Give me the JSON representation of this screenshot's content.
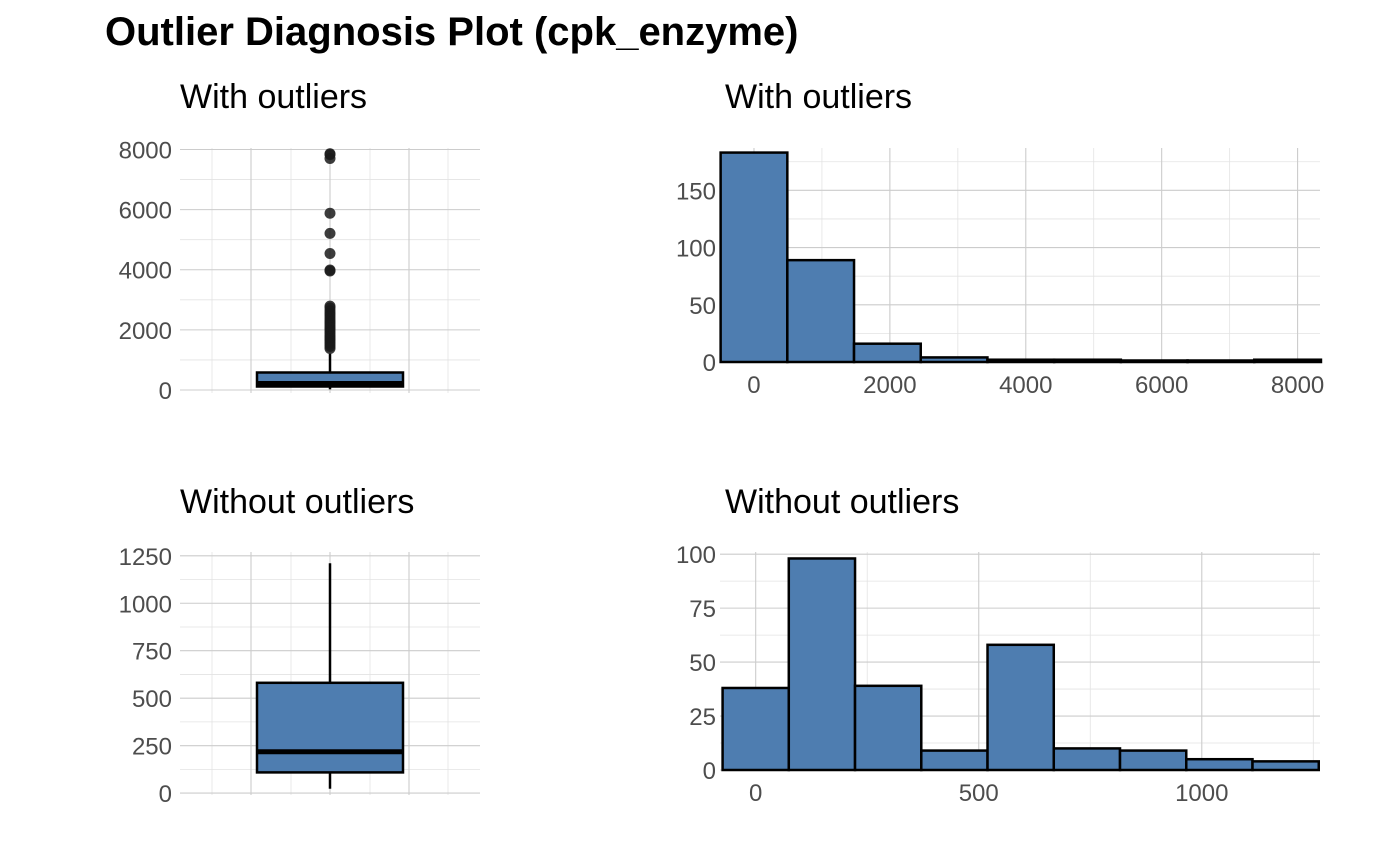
{
  "title": "Outlier Diagnosis Plot (cpk_enzyme)",
  "colors": {
    "fill": "#4E7DB0",
    "outline": "#000000",
    "grid": "#cccccc",
    "tick_text": "#4d4d4d"
  },
  "chart_data": [
    {
      "type": "box",
      "title": "With outliers",
      "xlabel": "",
      "ylabel": "",
      "ylim": [
        -100,
        8050
      ],
      "yticks": [
        0,
        2000,
        4000,
        6000,
        8000
      ],
      "grid": true,
      "box": {
        "q1": 116,
        "median": 215,
        "q3": 582,
        "whisker_low": 23,
        "whisker_high": 1211
      },
      "outliers": [
        1380,
        1450,
        1520,
        1580,
        1650,
        1700,
        1760,
        1810,
        1880,
        1940,
        2010,
        2060,
        2130,
        2200,
        2260,
        2330,
        2410,
        2490,
        2560,
        2640,
        2730,
        2790,
        3960,
        3990,
        4540,
        5210,
        5880,
        7700,
        7830,
        7860
      ]
    },
    {
      "type": "bar",
      "title": "With outliers",
      "xlabel": "",
      "ylabel": "",
      "xlim": [
        -500,
        8330
      ],
      "ylim": [
        0,
        187
      ],
      "xticks": [
        0,
        2000,
        4000,
        6000,
        8000
      ],
      "yticks": [
        0,
        50,
        100,
        150
      ],
      "grid": true,
      "bin_width": 981.7,
      "bins": [
        {
          "x0": -490.8,
          "x1": 490.8,
          "count": 183
        },
        {
          "x0": 490.8,
          "x1": 1472.5,
          "count": 89
        },
        {
          "x0": 1472.5,
          "x1": 2454.2,
          "count": 16
        },
        {
          "x0": 2454.2,
          "x1": 3435.8,
          "count": 4
        },
        {
          "x0": 3435.8,
          "x1": 4417.5,
          "count": 2
        },
        {
          "x0": 4417.5,
          "x1": 5399.2,
          "count": 2
        },
        {
          "x0": 5399.2,
          "x1": 6380.8,
          "count": 1
        },
        {
          "x0": 6380.8,
          "x1": 7362.5,
          "count": 0
        },
        {
          "x0": 7362.5,
          "x1": 8344.2,
          "count": 2
        }
      ]
    },
    {
      "type": "box",
      "title": "Without outliers",
      "xlabel": "",
      "ylabel": "",
      "ylim": [
        -10,
        1270
      ],
      "yticks": [
        0,
        250,
        500,
        750,
        1000,
        1250
      ],
      "grid": true,
      "box": {
        "q1": 109,
        "median": 218,
        "q3": 581,
        "whisker_low": 23,
        "whisker_high": 1211
      },
      "outliers": []
    },
    {
      "type": "bar",
      "title": "Without outliers",
      "xlabel": "",
      "ylabel": "",
      "xlim": [
        -80,
        1265
      ],
      "ylim": [
        0,
        101
      ],
      "xticks": [
        0,
        500,
        1000
      ],
      "yticks": [
        0,
        25,
        50,
        75,
        100
      ],
      "grid": true,
      "bin_width": 148.5,
      "bins": [
        {
          "x0": -74.2,
          "x1": 74.2,
          "count": 38
        },
        {
          "x0": 74.2,
          "x1": 222.7,
          "count": 98
        },
        {
          "x0": 222.7,
          "x1": 371.2,
          "count": 39
        },
        {
          "x0": 371.2,
          "x1": 519.7,
          "count": 9
        },
        {
          "x0": 519.7,
          "x1": 668.2,
          "count": 58
        },
        {
          "x0": 668.2,
          "x1": 816.7,
          "count": 10
        },
        {
          "x0": 816.7,
          "x1": 965.2,
          "count": 9
        },
        {
          "x0": 965.2,
          "x1": 1113.7,
          "count": 5
        },
        {
          "x0": 1113.7,
          "x1": 1262.2,
          "count": 4
        }
      ]
    }
  ]
}
